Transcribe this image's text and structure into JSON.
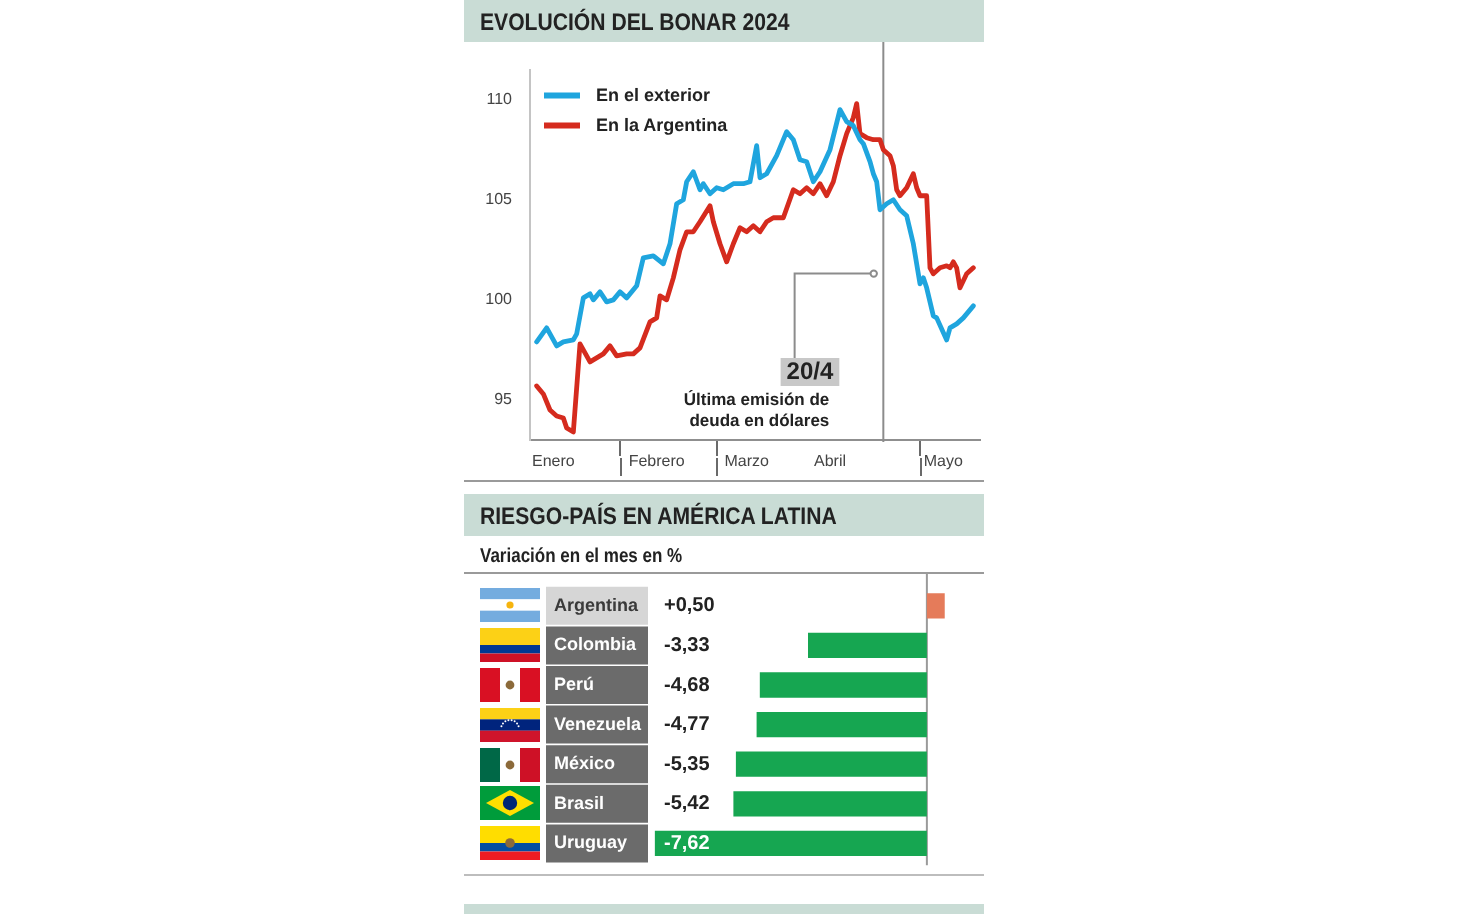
{
  "chart_data": [
    {
      "type": "line",
      "title": "EVOLUCIÓN DEL BONAR 2024",
      "legend": "top left",
      "series": [
        {
          "name": "En el exterior",
          "color": "#1fa5de",
          "x": [
            "2024-01-07",
            "2024-01-10",
            "2024-01-13",
            "2024-01-15",
            "2024-01-18",
            "2024-01-19",
            "2024-01-21",
            "2024-01-23",
            "2024-01-24",
            "2024-01-26",
            "2024-01-28",
            "2024-01-30",
            "2024-02-01",
            "2024-02-03",
            "2024-02-06",
            "2024-02-08",
            "2024-02-11",
            "2024-02-14",
            "2024-02-16",
            "2024-02-18",
            "2024-02-20",
            "2024-02-21",
            "2024-02-23",
            "2024-02-25",
            "2024-02-26",
            "2024-02-28",
            "2024-03-01",
            "2024-03-03",
            "2024-03-06",
            "2024-03-09",
            "2024-03-11",
            "2024-03-13",
            "2024-03-14",
            "2024-03-16",
            "2024-03-19",
            "2024-03-22",
            "2024-03-24",
            "2024-03-26",
            "2024-03-28",
            "2024-03-30",
            "2024-04-01",
            "2024-04-04",
            "2024-04-07",
            "2024-04-09",
            "2024-04-11",
            "2024-04-13",
            "2024-04-14",
            "2024-04-16",
            "2024-04-17",
            "2024-04-18",
            "2024-04-19",
            "2024-04-21",
            "2024-04-23",
            "2024-04-25",
            "2024-04-27",
            "2024-04-29",
            "2024-05-01",
            "2024-05-02",
            "2024-05-03",
            "2024-05-05",
            "2024-05-06",
            "2024-05-09",
            "2024-05-10",
            "2024-05-12",
            "2024-05-14",
            "2024-05-17"
          ],
          "values": [
            97.9,
            98.6,
            97.7,
            97.9,
            98.0,
            98.3,
            100.1,
            100.3,
            100.0,
            100.4,
            99.9,
            100.0,
            100.4,
            100.1,
            100.7,
            102.1,
            102.2,
            101.8,
            102.8,
            104.8,
            105.0,
            105.9,
            106.4,
            105.5,
            105.8,
            105.3,
            105.6,
            105.5,
            105.8,
            105.8,
            105.9,
            107.7,
            106.1,
            106.3,
            107.2,
            108.4,
            108.0,
            107.0,
            106.9,
            105.9,
            106.4,
            107.5,
            109.5,
            108.9,
            108.7,
            108.0,
            107.8,
            106.9,
            106.3,
            105.9,
            104.5,
            104.8,
            105.0,
            104.5,
            104.2,
            102.8,
            100.8,
            101.1,
            100.6,
            99.2,
            99.1,
            98.0,
            98.6,
            98.8,
            99.1,
            99.7
          ]
        },
        {
          "name": "En la Argentina",
          "color": "#d52b1e",
          "x": [
            "2024-01-07",
            "2024-01-09",
            "2024-01-11",
            "2024-01-13",
            "2024-01-15",
            "2024-01-16",
            "2024-01-18",
            "2024-01-20",
            "2024-01-23",
            "2024-01-27",
            "2024-01-29",
            "2024-01-31",
            "2024-02-03",
            "2024-02-05",
            "2024-02-07",
            "2024-02-10",
            "2024-02-12",
            "2024-02-13",
            "2024-02-15",
            "2024-02-17",
            "2024-02-19",
            "2024-02-21",
            "2024-02-23",
            "2024-02-25",
            "2024-02-28",
            "2024-02-29",
            "2024-03-02",
            "2024-03-04",
            "2024-03-06",
            "2024-03-08",
            "2024-03-10",
            "2024-03-12",
            "2024-03-14",
            "2024-03-16",
            "2024-03-18",
            "2024-03-21",
            "2024-03-24",
            "2024-03-26",
            "2024-03-28",
            "2024-03-30",
            "2024-04-01",
            "2024-04-03",
            "2024-04-05",
            "2024-04-07",
            "2024-04-09",
            "2024-04-11",
            "2024-04-12",
            "2024-04-13",
            "2024-04-15",
            "2024-04-17",
            "2024-04-19",
            "2024-04-20",
            "2024-04-22",
            "2024-04-23",
            "2024-04-24",
            "2024-04-25",
            "2024-04-27",
            "2024-04-29",
            "2024-04-30",
            "2024-05-01",
            "2024-05-03",
            "2024-05-04",
            "2024-05-05",
            "2024-05-07",
            "2024-05-09",
            "2024-05-10",
            "2024-05-11",
            "2024-05-12",
            "2024-05-13",
            "2024-05-15",
            "2024-05-17"
          ],
          "values": [
            95.7,
            95.3,
            94.5,
            94.2,
            94.1,
            93.6,
            93.4,
            97.8,
            96.9,
            97.3,
            97.7,
            97.2,
            97.3,
            97.3,
            97.6,
            98.9,
            99.1,
            100.2,
            100.0,
            101.1,
            102.5,
            103.4,
            103.4,
            103.9,
            104.7,
            103.9,
            102.8,
            101.9,
            102.8,
            103.6,
            103.4,
            103.7,
            103.4,
            103.9,
            104.1,
            104.1,
            105.5,
            105.3,
            105.6,
            105.3,
            105.8,
            105.2,
            105.9,
            107.2,
            108.3,
            109.1,
            109.8,
            108.3,
            108.1,
            108.0,
            108.0,
            107.5,
            107.2,
            106.7,
            105.5,
            105.2,
            105.6,
            106.3,
            105.6,
            105.2,
            105.2,
            101.6,
            101.3,
            101.6,
            101.7,
            101.6,
            101.9,
            101.6,
            100.6,
            101.3,
            101.6
          ]
        }
      ],
      "xlim": [
        "2024-01-05",
        "2024-05-19"
      ],
      "xticks": [
        {
          "value": "2024-01-12",
          "label": "Enero"
        },
        {
          "value": "2024-02-01",
          "label": null
        },
        {
          "value": "2024-02-12",
          "label": "Febrero"
        },
        {
          "value": "2024-03-01",
          "label": null
        },
        {
          "value": "2024-03-10",
          "label": "Marzo"
        },
        {
          "value": "2024-04-04",
          "label": "Abril"
        },
        {
          "value": "2024-05-01",
          "label": null
        },
        {
          "value": "2024-05-08",
          "label": "Mayo"
        }
      ],
      "ylim": [
        93,
        111.5
      ],
      "yticks": [
        95,
        100,
        105,
        110
      ],
      "ref_lines": [
        {
          "axis": "x",
          "value": "2024-04-20",
          "label": "20/4",
          "color": "#8c8c8c"
        }
      ],
      "annotations": [
        "Última emisión de deuda en dólares"
      ]
    },
    {
      "type": "bar",
      "orientation": "horizontal",
      "title": "RIESGO-PAÍS EN AMÉRICA LATINA",
      "subtitle": "Variación en el mes en %",
      "categories": [
        "Argentina",
        "Colombia",
        "Perú",
        "Venezuela",
        "México",
        "Brasil",
        "Uruguay"
      ],
      "values": [
        0.5,
        -3.33,
        -4.68,
        -4.77,
        -5.35,
        -5.42,
        -7.62
      ],
      "colors": [
        "#e57b5a",
        "#16a651",
        "#16a651",
        "#16a651",
        "#16a651",
        "#16a651",
        "#16a651"
      ],
      "value_labels": [
        "+0,50",
        "-3,33",
        "-4,68",
        "-4,77",
        "-5,35",
        "-5,42",
        "-7,62"
      ],
      "xlim": [
        -7.7,
        1.6
      ],
      "tick_labels": "y",
      "ref_lines": [
        {
          "axis": "x",
          "value": 0,
          "color": "#9a9a9a"
        }
      ]
    }
  ]
}
